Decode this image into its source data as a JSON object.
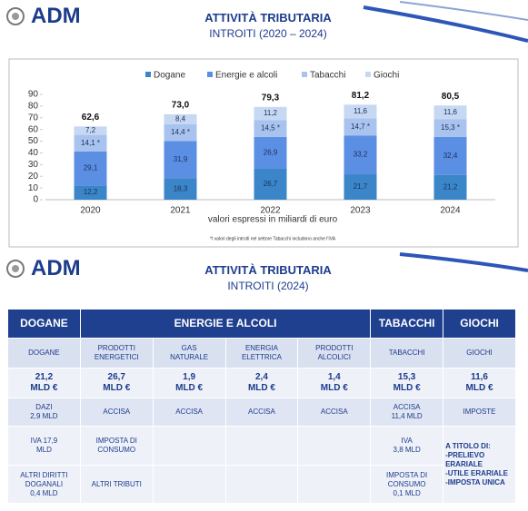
{
  "header": {
    "logo": "ADM",
    "title": "ATTIVITÀ TRIBUTARIA",
    "subtitle": "INTROITI (2020 – 2024)"
  },
  "chart_data": {
    "type": "stacked-bar",
    "categories": [
      "2020",
      "2021",
      "2022",
      "2023",
      "2024"
    ],
    "series": [
      {
        "name": "Dogane",
        "color": "#3a86c8",
        "values": [
          12.2,
          18.3,
          26.7,
          21.7,
          21.2
        ],
        "value_labels": [
          "12,2",
          "18,3",
          "26,7",
          "21,7",
          "21,2"
        ]
      },
      {
        "name": "Energie e alcoli",
        "color": "#5b8fe3",
        "values": [
          29.1,
          31.9,
          26.9,
          33.2,
          32.4
        ],
        "value_labels": [
          "29,1",
          "31,9",
          "26,9",
          "33,2",
          "32,4"
        ]
      },
      {
        "name": "Tabacchi",
        "color": "#a8c3ee",
        "values": [
          14.1,
          14.4,
          14.5,
          14.7,
          15.3
        ],
        "value_labels": [
          "14,1 *",
          "14,4 *",
          "14,5 *",
          "14,7 *",
          "15,3 *"
        ]
      },
      {
        "name": "Giochi",
        "color": "#c6d8f2",
        "values": [
          7.2,
          8.4,
          11.2,
          11.6,
          11.6
        ],
        "value_labels": [
          "7,2",
          "8,4",
          "11,2",
          "11,6",
          "11,6"
        ]
      }
    ],
    "totals": {
      "values": [
        62.6,
        73.0,
        79.3,
        81.2,
        80.5
      ],
      "value_labels": [
        "62,6",
        "73,0",
        "79,3",
        "81,2",
        "80,5"
      ]
    },
    "ylim": [
      0,
      90
    ],
    "yticks": [
      0,
      10,
      20,
      30,
      40,
      50,
      60,
      70,
      80,
      90
    ],
    "xlabel": "valori espressi in miliardi di euro",
    "footnote": "*I valori degli introiti nel settore Tabacchi includono anche l'IVA"
  },
  "header2": {
    "logo": "ADM",
    "title": "ATTIVITÀ TRIBUTARIA",
    "subtitle": "INTROITI (2024)"
  },
  "table": {
    "header": [
      "DOGANE",
      "ENERGIE E ALCOLI",
      "TABACCHI",
      "GIOCHI"
    ],
    "rows": [
      [
        "DOGANE",
        "PRODOTTI\nENERGETICI",
        "GAS\nNATURALE",
        "ENERGIA\nELETTRICA",
        "PRODOTTI\nALCOLICI",
        "TABACCHI",
        "GIOCHI"
      ],
      [
        "21,2\nMLD €",
        "26,7\nMLD €",
        "1,9\nMLD €",
        "2,4\nMLD €",
        "1,4\nMLD €",
        "15,3\nMLD €",
        "11,6\nMLD €"
      ],
      [
        "DAZI\n2,9 MLD",
        "ACCISA",
        "ACCISA",
        "ACCISA",
        "ACCISA",
        "ACCISA\n11,4 MLD",
        "IMPOSTE"
      ],
      [
        "IVA 17,9\nMLD",
        "IMPOSTA DI\nCONSUMO",
        null,
        null,
        null,
        "IVA\n3,8 MLD",
        "A TITOLO DI:\n-PRELIEVO\n ERARIALE\n-UTILE ERARIALE\n-IMPOSTA UNICA"
      ],
      [
        "ALTRI DIRITTI\nDOGANALI\n0,4 MLD",
        "ALTRI TRIBUTI",
        null,
        null,
        null,
        "IMPOSTA DI\nCONSUMO\n0,1 MLD"
      ]
    ]
  }
}
